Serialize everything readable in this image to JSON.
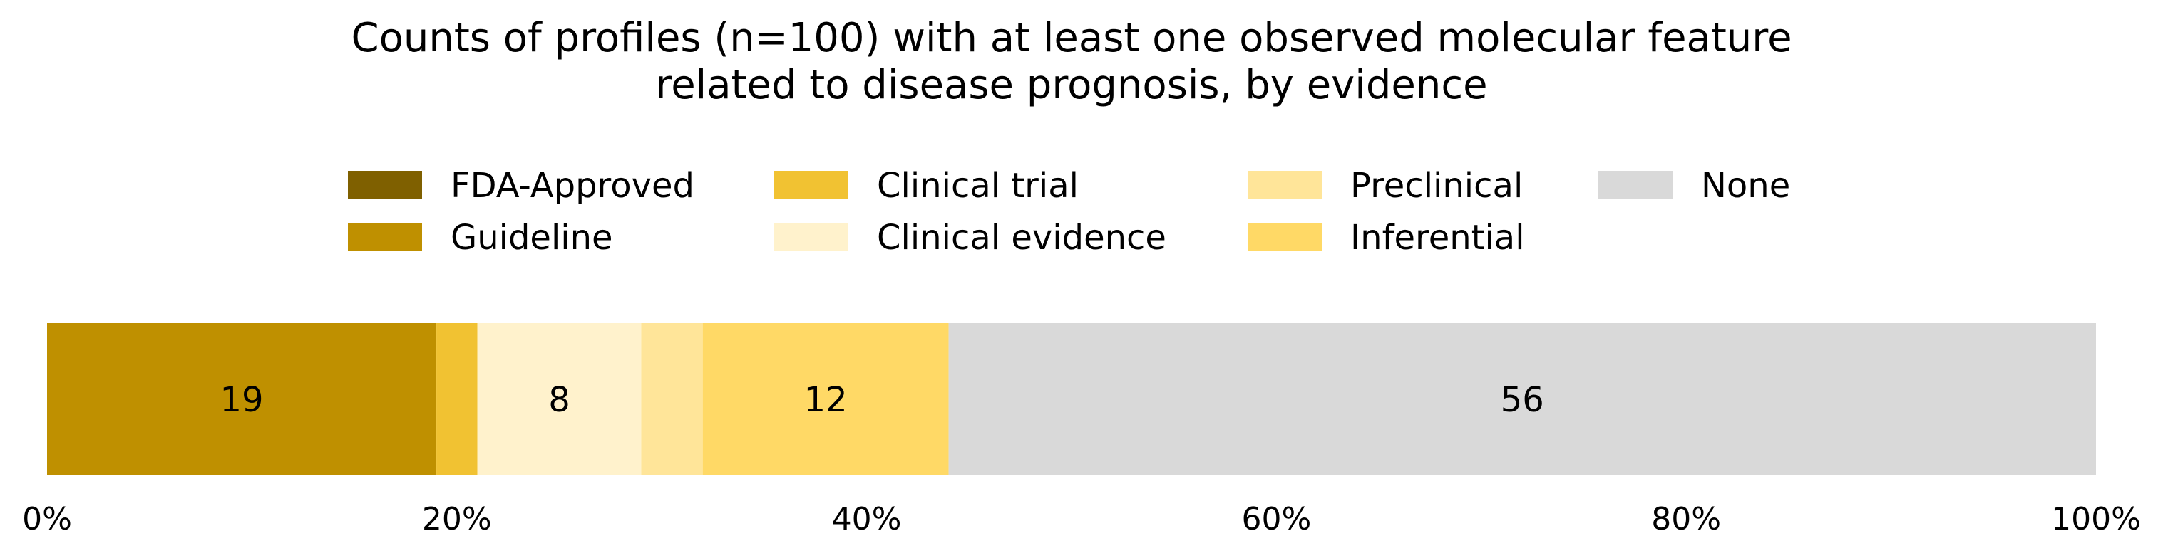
{
  "chart_data": {
    "type": "bar",
    "orientation": "horizontal",
    "stacked": true,
    "title_lines": [
      "Counts of profiles (n=100) with at least one observed molecular feature",
      "related to disease prognosis, by evidence"
    ],
    "categories": [
      ""
    ],
    "series": [
      {
        "name": "FDA-Approved",
        "values": [
          0
        ],
        "color": "#7f6000"
      },
      {
        "name": "Guideline",
        "values": [
          19
        ],
        "color": "#bf9000"
      },
      {
        "name": "Clinical trial",
        "values": [
          2
        ],
        "color": "#f1c232"
      },
      {
        "name": "Clinical evidence",
        "values": [
          8
        ],
        "color": "#fff2cc"
      },
      {
        "name": "Preclinical",
        "values": [
          3
        ],
        "color": "#ffe599"
      },
      {
        "name": "Inferential",
        "values": [
          12
        ],
        "color": "#ffd966"
      },
      {
        "name": "None",
        "values": [
          56
        ],
        "color": "#d9d9d9"
      }
    ],
    "data_labels": [
      "",
      "19",
      "",
      "8",
      "",
      "12",
      "56"
    ],
    "xlim": [
      0,
      100
    ],
    "xticks": [
      0,
      20,
      40,
      60,
      80,
      100
    ],
    "xtick_labels": [
      "0%",
      "20%",
      "40%",
      "60%",
      "80%",
      "100%"
    ],
    "legend_placement": "top",
    "grid": false
  }
}
